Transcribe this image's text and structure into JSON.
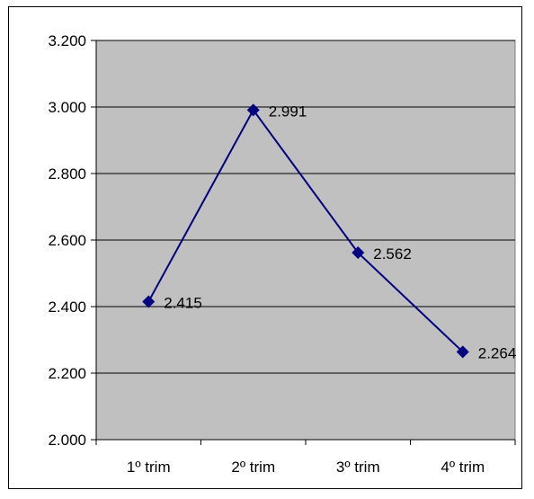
{
  "chart_data": {
    "type": "line",
    "title": "",
    "xlabel": "",
    "ylabel": "",
    "categories": [
      "1º trim",
      "2º trim",
      "3º trim",
      "4º trim"
    ],
    "series": [
      {
        "values": [
          2415,
          2991,
          2562,
          2264
        ]
      }
    ],
    "data_labels": [
      "2.415",
      "2.991",
      "2.562",
      "2.264"
    ],
    "y_ticks": [
      2000,
      2200,
      2400,
      2600,
      2800,
      3000,
      3200
    ],
    "y_tick_labels": [
      "2.000",
      "2.200",
      "2.400",
      "2.600",
      "2.800",
      "3.000",
      "3.200"
    ],
    "ylim": [
      2000,
      3200
    ],
    "grid": true,
    "legend": "none",
    "colors": {
      "plot_background": "#c0c0c0",
      "series_line": "#000080",
      "gridline": "#000000"
    },
    "marker": "diamond-icon"
  }
}
